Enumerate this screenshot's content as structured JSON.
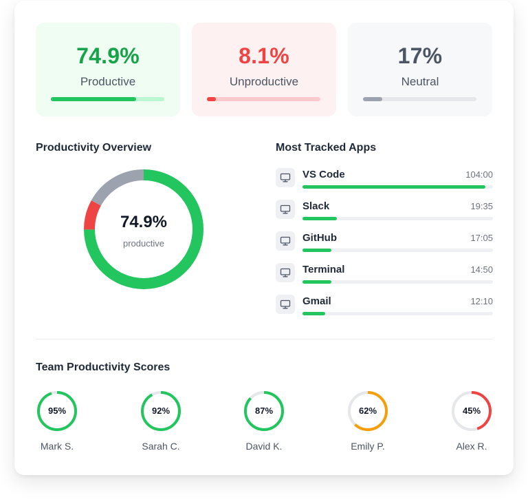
{
  "stats": [
    {
      "value": "74.9%",
      "label": "Productive",
      "fraction": 0.749,
      "bg": "#effdf3",
      "color": "#16a34a",
      "track": "#bbf7d0",
      "fill": "#22c55e"
    },
    {
      "value": "8.1%",
      "label": "Unproductive",
      "fraction": 0.081,
      "bg": "#fef1f1",
      "color": "#ef4444",
      "track": "#fecaca",
      "fill": "#ef4444"
    },
    {
      "value": "17%",
      "label": "Neutral",
      "fraction": 0.17,
      "bg": "#f7f8fa",
      "color": "#4b5563",
      "track": "#e5e7eb",
      "fill": "#9ca3af"
    }
  ],
  "overview": {
    "title": "Productivity Overview",
    "center_value": "74.9%",
    "center_label": "productive",
    "segments": [
      {
        "name": "productive",
        "fraction": 0.749,
        "color": "#22c55e"
      },
      {
        "name": "unproductive",
        "fraction": 0.081,
        "color": "#ef4444"
      },
      {
        "name": "neutral",
        "fraction": 0.17,
        "color": "#9ca3af"
      }
    ]
  },
  "apps": {
    "title": "Most Tracked Apps",
    "icon": "monitor-icon",
    "items": [
      {
        "name": "VS Code",
        "time": "104:00",
        "fraction": 0.96
      },
      {
        "name": "Slack",
        "time": "19:35",
        "fraction": 0.18
      },
      {
        "name": "GitHub",
        "time": "17:05",
        "fraction": 0.15
      },
      {
        "name": "Terminal",
        "time": "14:50",
        "fraction": 0.15
      },
      {
        "name": "Gmail",
        "time": "12:10",
        "fraction": 0.12
      }
    ]
  },
  "team": {
    "title": "Team Productivity Scores",
    "members": [
      {
        "name": "Mark S.",
        "score": "95%",
        "fraction": 0.95,
        "color": "#22c55e"
      },
      {
        "name": "Sarah C.",
        "score": "92%",
        "fraction": 0.92,
        "color": "#22c55e"
      },
      {
        "name": "David K.",
        "score": "87%",
        "fraction": 0.87,
        "color": "#22c55e"
      },
      {
        "name": "Emily P.",
        "score": "62%",
        "fraction": 0.62,
        "color": "#f59e0b"
      },
      {
        "name": "Alex R.",
        "score": "45%",
        "fraction": 0.45,
        "color": "#ef4444"
      }
    ]
  }
}
